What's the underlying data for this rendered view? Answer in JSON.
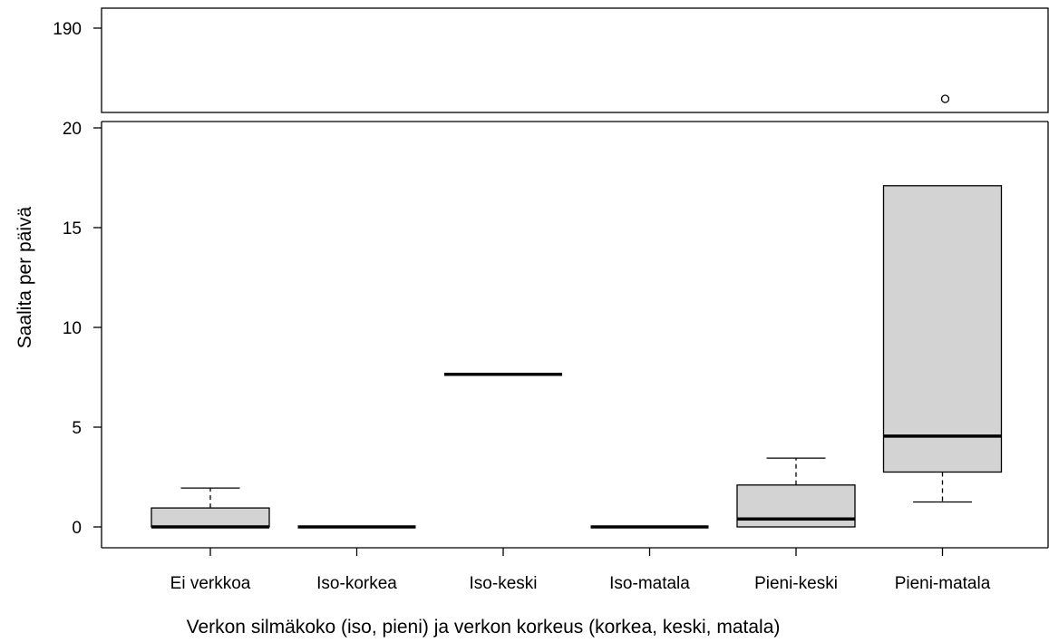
{
  "chart_data": {
    "type": "boxplot",
    "xlabel": "Verkon silmäkoko (iso, pieni) ja verkon korkeus (korkea, keski, matala)",
    "ylabel": "Saalita per päivä",
    "categories": [
      "Ei verkkoa",
      "Iso-korkea",
      "Iso-keski",
      "Iso-matala",
      "Pieni-keski",
      "Pieni-matala"
    ],
    "broken_axis": true,
    "upper_panel": {
      "yticks": [
        190
      ]
    },
    "lower_panel": {
      "ylim": [
        -1,
        20.2
      ],
      "yticks": [
        0,
        5,
        10,
        15,
        20
      ]
    },
    "boxes": [
      {
        "category": "Ei verkkoa",
        "whisker_low": 0,
        "q1": 0,
        "median": 0,
        "q3": 0.95,
        "whisker_high": 1.95,
        "outliers": []
      },
      {
        "category": "Iso-korkea",
        "whisker_low": 0,
        "q1": 0,
        "median": 0,
        "q3": 0,
        "whisker_high": 0,
        "outliers": []
      },
      {
        "category": "Iso-keski",
        "whisker_low": 7.65,
        "q1": 7.65,
        "median": 7.65,
        "q3": 7.65,
        "whisker_high": 7.65,
        "outliers": []
      },
      {
        "category": "Iso-matala",
        "whisker_low": 0,
        "q1": 0,
        "median": 0,
        "q3": 0,
        "whisker_high": 0,
        "outliers": []
      },
      {
        "category": "Pieni-keski",
        "whisker_low": 0,
        "q1": 0,
        "median": 0.4,
        "q3": 2.1,
        "whisker_high": 3.45,
        "outliers": []
      },
      {
        "category": "Pieni-matala",
        "whisker_low": 1.25,
        "q1": 2.75,
        "median": 4.55,
        "q3": 17.1,
        "whisker_high": 17.1,
        "outliers": [
          60
        ]
      }
    ],
    "colors": {
      "box_fill": "#d3d3d3",
      "line": "#000000"
    }
  }
}
